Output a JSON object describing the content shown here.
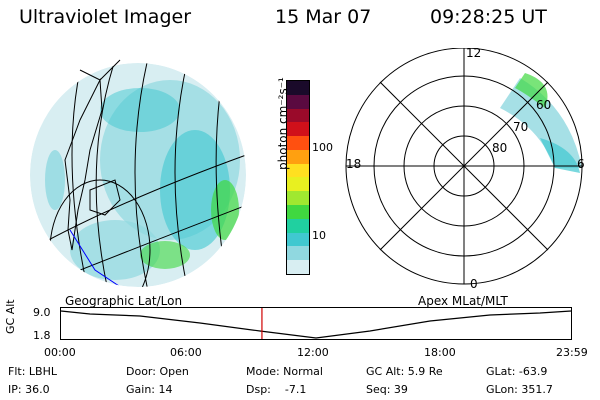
{
  "header": {
    "instrument": "Ultraviolet Imager",
    "date": "15 Mar 07",
    "time": "09:28:25 UT"
  },
  "colorbar": {
    "unit_label": "photon cm⁻²s⁻¹",
    "ticks": [
      "100",
      "10"
    ],
    "colors": [
      "#1a0a2a",
      "#5a0a40",
      "#9a0a2a",
      "#d0101a",
      "#ff5010",
      "#ffa010",
      "#ffe020",
      "#e8f020",
      "#a0e830",
      "#40d840",
      "#20d0a0",
      "#40c8d0",
      "#90d8e0",
      "#d8eef2"
    ]
  },
  "left_map": {
    "caption": "Geographic Lat/Lon"
  },
  "right_map": {
    "caption": "Apex  MLat/MLT",
    "mlt_labels": {
      "top": "12",
      "left": "18",
      "right": "6",
      "bottom": "0"
    },
    "lat_labels": [
      "60",
      "70",
      "80"
    ]
  },
  "timeline": {
    "ylabel": "GC Alt",
    "ytick_top": "9.0",
    "ytick_bottom": "1.8",
    "xticks": [
      "00:00",
      "06:00",
      "12:00",
      "18:00",
      "23:59"
    ],
    "current_time_fraction": 0.394
  },
  "status": {
    "flt": "Flt: LBHL",
    "ip": "IP: 36.0",
    "door": "Door: Open",
    "gain": "Gain: 14",
    "mode": "Mode: Normal",
    "dsp": "Dsp:    -7.1",
    "gc_alt": "GC Alt: 5.9 Re",
    "seq": "Seq: 39",
    "glat": "GLat: -63.9",
    "glon": "GLon: 351.7"
  }
}
